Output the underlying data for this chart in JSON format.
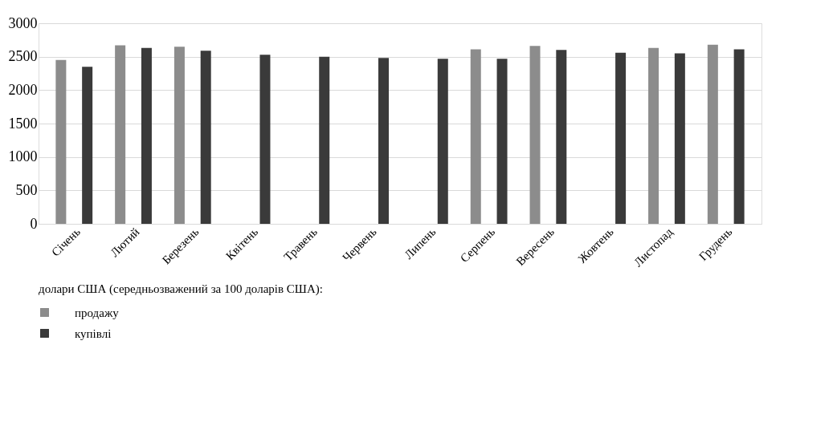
{
  "chart_data": {
    "type": "bar",
    "categories": [
      "Січень",
      "Лютий",
      "Березень",
      "Квітень",
      "Травень",
      "Червень",
      "Липень",
      "Серпень",
      "Вересень",
      "Жовтень",
      "Листопад",
      "Грудень"
    ],
    "series": [
      {
        "name": "продажу",
        "color": "#8c8c8c",
        "values": [
          2450,
          2670,
          2650,
          null,
          null,
          null,
          null,
          2610,
          2660,
          null,
          2630,
          2680
        ]
      },
      {
        "name": "купівлі",
        "color": "#3a3a3a",
        "values": [
          2350,
          2630,
          2590,
          2530,
          2500,
          2480,
          2470,
          2470,
          2600,
          2560,
          2550,
          2610
        ]
      }
    ],
    "legend_title": "долари США   (середньозважений за 100 доларів США):",
    "ylim": [
      0,
      3000
    ],
    "yticks": [
      0,
      500,
      1000,
      1500,
      2000,
      2500,
      3000
    ],
    "grid": "y",
    "legend": "bottom"
  }
}
